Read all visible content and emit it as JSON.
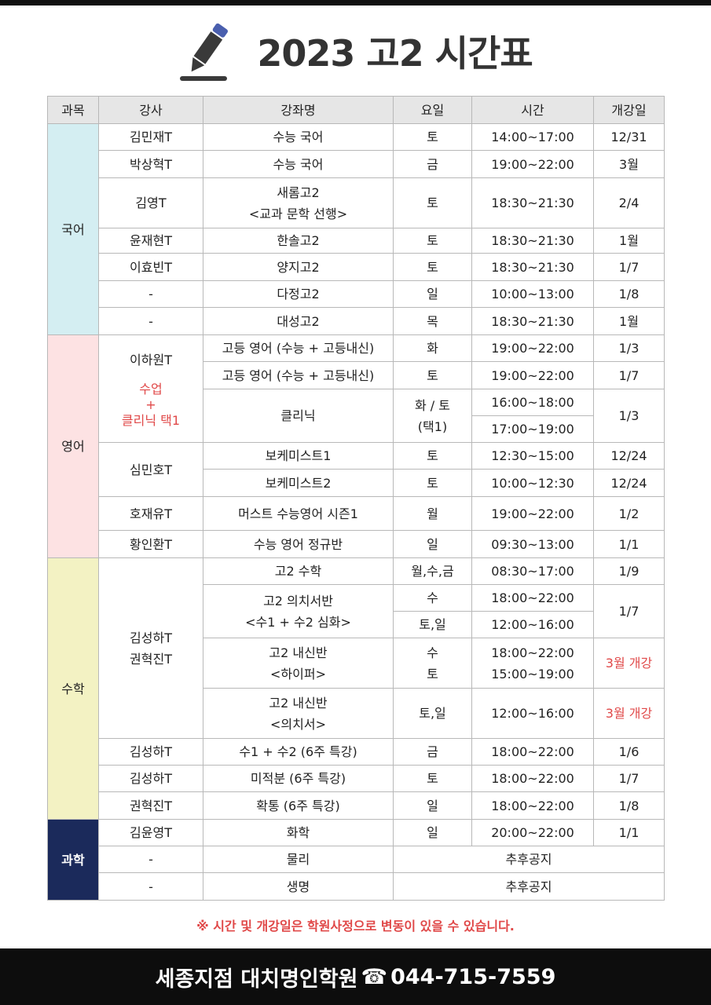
{
  "title": "2023 고2 시간표",
  "headers": [
    "과목",
    "강사",
    "강좌명",
    "요일",
    "시간",
    "개강일"
  ],
  "subjects": {
    "kor": "국어",
    "eng": "영어",
    "math": "수학",
    "sci": "과학"
  },
  "colors": {
    "kor": "#d4eef2",
    "eng": "#fde2e3",
    "math": "#f3f2c3",
    "sci": "#1b2a5b",
    "red": "#e04848"
  },
  "eng_note": "수업\n+\n클리닉 택1",
  "rows": [
    {
      "teacher": "김민재T",
      "course": "수능 국어",
      "day": "토",
      "time": "14:00~17:00",
      "start": "12/31"
    },
    {
      "teacher": "박상혁T",
      "course": "수능 국어",
      "day": "금",
      "time": "19:00~22:00",
      "start": "3월"
    },
    {
      "teacher": "김영T",
      "course": "새롬고2\n<교과 문학 선행>",
      "day": "토",
      "time": "18:30~21:30",
      "start": "2/4"
    },
    {
      "teacher": "윤재현T",
      "course": "한솔고2",
      "day": "토",
      "time": "18:30~21:30",
      "start": "1월"
    },
    {
      "teacher": "이효빈T",
      "course": "양지고2",
      "day": "토",
      "time": "18:30~21:30",
      "start": "1/7"
    },
    {
      "teacher": "-",
      "course": "다정고2",
      "day": "일",
      "time": "10:00~13:00",
      "start": "1/8"
    },
    {
      "teacher": "-",
      "course": "대성고2",
      "day": "목",
      "time": "18:30~21:30",
      "start": "1월"
    },
    {
      "teacher": "이하원T",
      "course": "고등 영어 (수능 + 고등내신)",
      "day": "화",
      "time": "19:00~22:00",
      "start": "1/3"
    },
    {
      "course": "고등 영어 (수능 + 고등내신)",
      "day": "토",
      "time": "19:00~22:00",
      "start": "1/7"
    },
    {
      "course": "클리닉",
      "day": "화 / 토\n(택1)",
      "time": "16:00~18:00",
      "start": "1/3"
    },
    {
      "time": "17:00~19:00"
    },
    {
      "teacher": "심민호T",
      "course": "보케미스트1",
      "day": "토",
      "time": "12:30~15:00",
      "start": "12/24"
    },
    {
      "course": "보케미스트2",
      "day": "토",
      "time": "10:00~12:30",
      "start": "12/24"
    },
    {
      "teacher": "호재유T",
      "course": "머스트 수능영어 시즌1",
      "day": "월",
      "time": "19:00~22:00",
      "start": "1/2"
    },
    {
      "teacher": "황인환T",
      "course": "수능 영어 정규반",
      "day": "일",
      "time": "09:30~13:00",
      "start": "1/1"
    },
    {
      "teacher": "김성하T\n권혁진T",
      "course": "고2 수학",
      "day": "월,수,금",
      "time": "08:30~17:00",
      "start": "1/9"
    },
    {
      "course": "고2 의치서반\n<수1 + 수2 심화>",
      "day": "수",
      "time": "18:00~22:00",
      "start": "1/7"
    },
    {
      "day": "토,일",
      "time": "12:00~16:00"
    },
    {
      "course": "고2 내신반\n<하이퍼>",
      "day": "수\n토",
      "time": "18:00~22:00\n15:00~19:00",
      "start": "3월 개강"
    },
    {
      "course": "고2 내신반\n<의치서>",
      "day": "토,일",
      "time": "12:00~16:00",
      "start": "3월 개강"
    },
    {
      "teacher": "김성하T",
      "course": "수1 + 수2 (6주 특강)",
      "day": "금",
      "time": "18:00~22:00",
      "start": "1/6"
    },
    {
      "teacher": "김성하T",
      "course": "미적분 (6주 특강)",
      "day": "토",
      "time": "18:00~22:00",
      "start": "1/7"
    },
    {
      "teacher": "권혁진T",
      "course": "확통 (6주 특강)",
      "day": "일",
      "time": "18:00~22:00",
      "start": "1/8"
    },
    {
      "teacher": "김윤영T",
      "course": "화학",
      "day": "일",
      "time": "20:00~22:00",
      "start": "1/1"
    },
    {
      "teacher": "-",
      "course": "물리",
      "tbd": "추후공지"
    },
    {
      "teacher": "-",
      "course": "생명",
      "tbd": "추후공지"
    }
  ],
  "notice": "※  시간 및 개강일은 학원사정으로 변동이 있을 수 있습니다.",
  "footer": {
    "branch": "세종지점 대치명인학원",
    "phone_icon": "telephone-icon",
    "phone": "044-715-7559"
  }
}
